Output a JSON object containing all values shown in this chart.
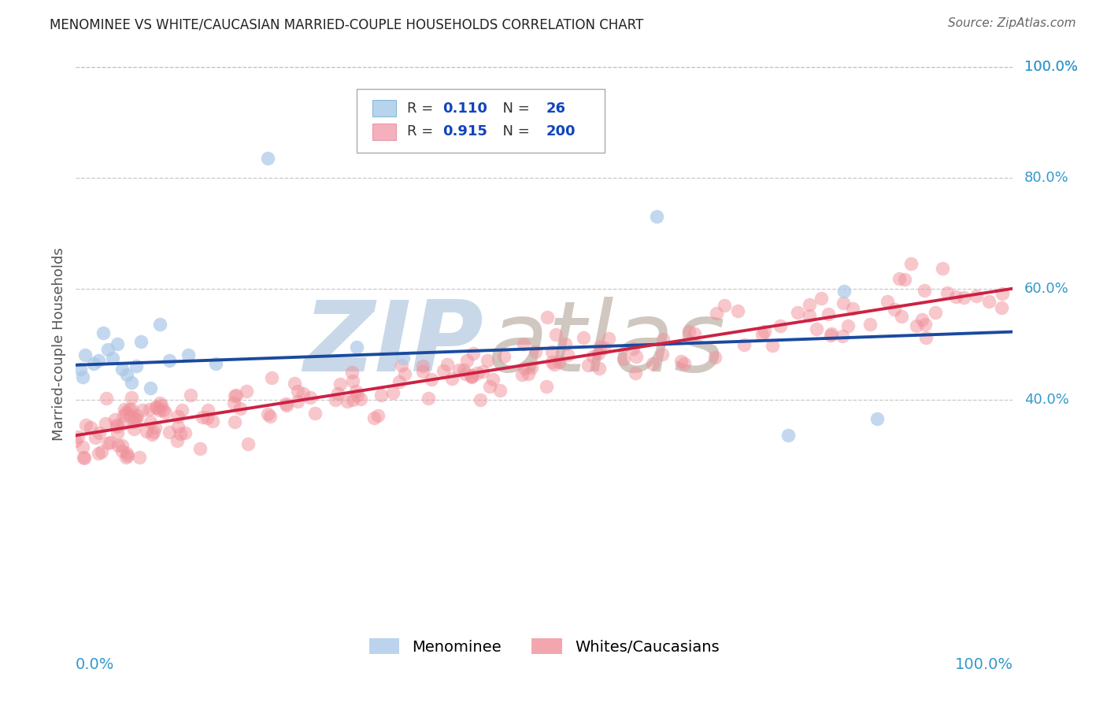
{
  "title": "MENOMINEE VS WHITE/CAUCASIAN MARRIED-COUPLE HOUSEHOLDS CORRELATION CHART",
  "source": "Source: ZipAtlas.com",
  "ylabel": "Married-couple Households",
  "menominee_R": 0.11,
  "menominee_N": 26,
  "white_R": 0.915,
  "white_N": 200,
  "blue_scatter_color": "#aac8e8",
  "pink_scatter_color": "#f0909a",
  "blue_line_color": "#1a4a9e",
  "pink_line_color": "#cc2244",
  "blue_legend_color": "#b8d4ec",
  "pink_legend_color": "#f4b0bc",
  "background_color": "#ffffff",
  "grid_color": "#bbbbbb",
  "watermark_zip_color": "#c8d8e8",
  "watermark_atlas_color": "#d0c8c0",
  "title_color": "#222222",
  "source_color": "#666666",
  "axis_label_color": "#3399cc",
  "legend_R_color": "#333333",
  "legend_N_color": "#1144bb",
  "xlim": [
    0.0,
    1.0
  ],
  "ylim": [
    0.0,
    1.0
  ],
  "blue_line_x0": 0.0,
  "blue_line_y0": 0.462,
  "blue_line_x1": 1.0,
  "blue_line_y1": 0.522,
  "pink_line_x0": 0.0,
  "pink_line_y0": 0.335,
  "pink_line_x1": 1.0,
  "pink_line_y1": 0.6,
  "yticks": [
    0.4,
    0.6,
    0.8,
    1.0
  ],
  "ytick_labels": [
    "40.0%",
    "60.0%",
    "80.0%",
    "100.0%"
  ]
}
